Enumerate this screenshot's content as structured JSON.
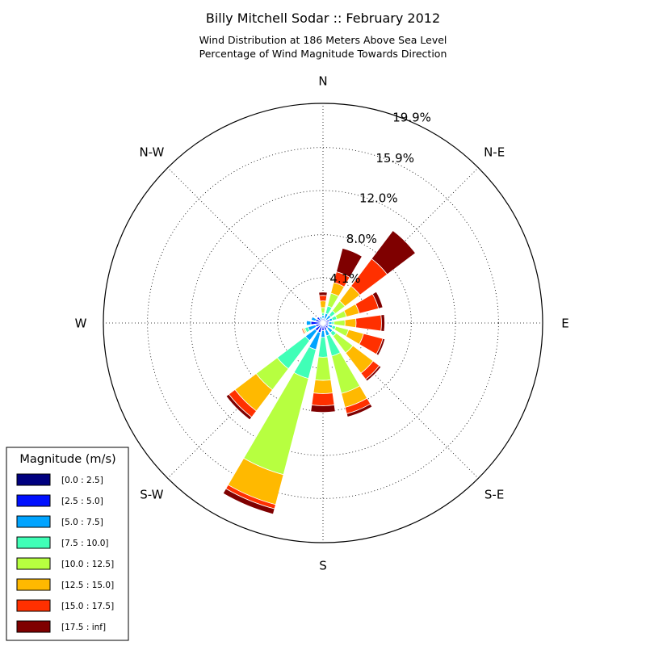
{
  "chart_data": {
    "type": "windrose",
    "title": "Billy Mitchell Sodar :: February 2012",
    "subtitle_lines": [
      "Wind Distribution at 186 Meters Above Sea Level",
      "Percentage of Wind Magnitude Towards Direction"
    ],
    "direction_labels": [
      "N",
      "N-E",
      "E",
      "S-E",
      "S",
      "S-W",
      "W",
      "N-W"
    ],
    "radial_tick_values": [
      4.1,
      8.0,
      12.0,
      15.9,
      19.9
    ],
    "radial_tick_labels": [
      "4.1%",
      "8.0%",
      "12.0%",
      "15.9%",
      "19.9%"
    ],
    "radial_max": 19.9,
    "grid": true,
    "sector_directions_deg": [
      0,
      22.5,
      45,
      67.5,
      90,
      112.5,
      135,
      157.5,
      180,
      202.5,
      225,
      247.5,
      270,
      292.5,
      315,
      337.5
    ],
    "legend": {
      "title": "Magnitude (m/s)",
      "placement": "bottom-left",
      "entries": [
        "[0.0 : 2.5]",
        "[2.5 : 5.0]",
        "[5.0 : 7.5]",
        "[7.5 : 10.0]",
        "[10.0 : 12.5]",
        "[12.5 : 15.0]",
        "[15.0 : 17.5]",
        "[17.5 : inf]"
      ],
      "colors": [
        "#00007f",
        "#0010ff",
        "#00a4ff",
        "#40ffb7",
        "#b7ff40",
        "#ffb900",
        "#ff3000",
        "#7f0000"
      ]
    },
    "series_cumulative_percent": [
      [
        0.1,
        0.4,
        0.7,
        0.9,
        1.4,
        2.0,
        2.5,
        2.8
      ],
      [
        0.1,
        0.4,
        0.9,
        1.6,
        2.8,
        3.8,
        4.8,
        7.0
      ],
      [
        0.1,
        0.4,
        0.9,
        1.4,
        2.5,
        4.2,
        7.3,
        10.5
      ],
      [
        0.2,
        0.6,
        0.9,
        1.3,
        2.2,
        3.4,
        5.2,
        5.6
      ],
      [
        0.2,
        0.5,
        0.8,
        1.0,
        2.0,
        3.0,
        5.3,
        5.6
      ],
      [
        0.2,
        0.5,
        0.9,
        1.2,
        2.4,
        3.8,
        5.6,
        5.8
      ],
      [
        0.2,
        0.6,
        1.1,
        1.5,
        3.4,
        5.7,
        6.4,
        6.6
      ],
      [
        0.2,
        0.7,
        1.2,
        3.1,
        6.6,
        7.9,
        8.5,
        8.8
      ],
      [
        0.2,
        0.7,
        1.3,
        3.1,
        5.2,
        6.4,
        7.5,
        8.1
      ],
      [
        0.2,
        0.9,
        2.5,
        5.2,
        14.2,
        17.0,
        17.4,
        17.9
      ],
      [
        0.2,
        0.9,
        2.0,
        5.2,
        7.6,
        10.0,
        10.7,
        11.0
      ],
      [
        0.2,
        0.7,
        1.4,
        1.7,
        1.8,
        1.9,
        2.0,
        2.0
      ],
      [
        0.2,
        1.1,
        1.5,
        1.5,
        1.5,
        1.5,
        1.5,
        1.5
      ],
      [
        0.1,
        0.7,
        1.1,
        1.1,
        1.1,
        1.1,
        1.1,
        1.1
      ],
      [
        0.1,
        0.7,
        0.7,
        0.7,
        0.7,
        0.7,
        0.7,
        0.7
      ],
      [
        0.1,
        0.3,
        0.6,
        0.6,
        0.6,
        0.6,
        0.6,
        0.6
      ]
    ]
  }
}
